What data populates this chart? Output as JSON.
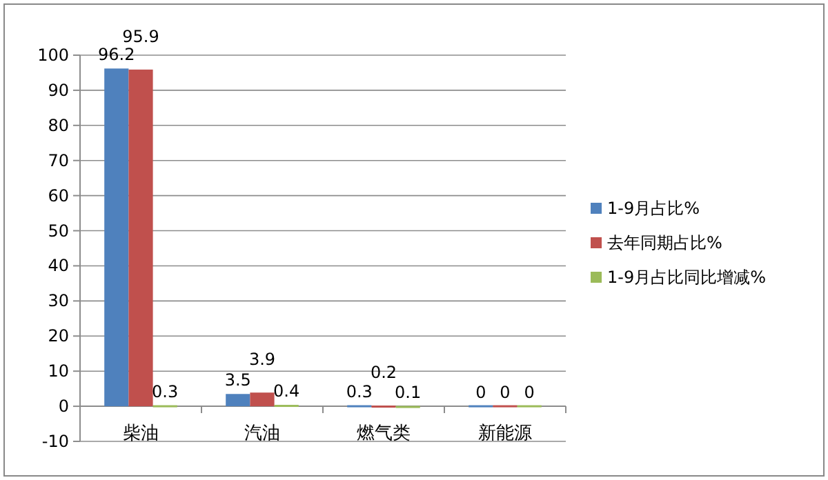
{
  "chart_data": {
    "type": "bar",
    "categories": [
      "柴油",
      "汽油",
      "燃气类",
      "新能源"
    ],
    "series": [
      {
        "name": "1-9月占比%",
        "color": "#4f81bd",
        "values": [
          96.2,
          3.5,
          0.3,
          0
        ]
      },
      {
        "name": "去年同期占比%",
        "color": "#c0504d",
        "values": [
          95.9,
          3.9,
          0.2,
          0
        ]
      },
      {
        "name": "1-9月占比同比增减%",
        "color": "#9bbb59",
        "values": [
          0.3,
          0.4,
          0.1,
          0
        ]
      }
    ],
    "ylim": [
      -10,
      100
    ],
    "yticks": [
      -10,
      0,
      10,
      20,
      30,
      40,
      50,
      60,
      70,
      80,
      90,
      100
    ],
    "grid": "y",
    "legend": "right",
    "data_labels": true
  }
}
